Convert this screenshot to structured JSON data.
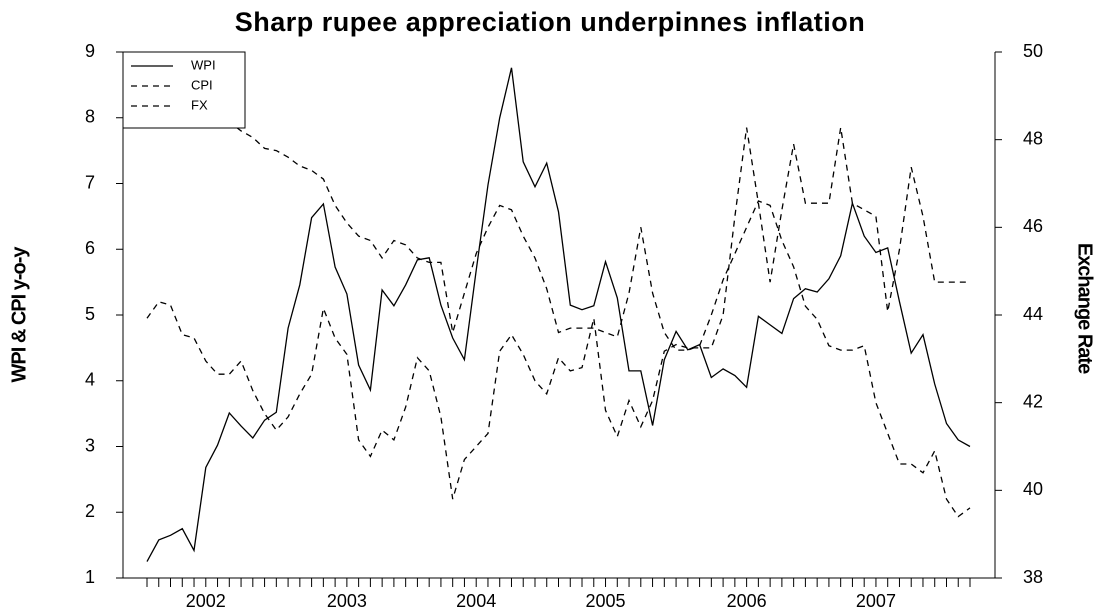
{
  "chart_data": {
    "type": "line",
    "title": "Sharp rupee appreciation underpinnes inflation",
    "y_label": "WPI & CPI y-o-y",
    "y2_label": "Exchange Rate",
    "categories": [
      null,
      null,
      null,
      null,
      null,
      "2002",
      null,
      null,
      null,
      null,
      null,
      null,
      null,
      null,
      null,
      null,
      null,
      "2003",
      null,
      null,
      null,
      null,
      null,
      null,
      null,
      null,
      null,
      null,
      "2004",
      null,
      null,
      null,
      null,
      null,
      null,
      null,
      null,
      null,
      null,
      "2005",
      null,
      null,
      null,
      null,
      null,
      null,
      null,
      null,
      null,
      null,
      null,
      "2006",
      null,
      null,
      null,
      null,
      null,
      null,
      null,
      null,
      null,
      null,
      "2007",
      null,
      null,
      null,
      null,
      null,
      null,
      null,
      null
    ],
    "series": [
      {
        "name": "WPI",
        "color": "#000000",
        "style": "solid",
        "values": [
          1.25,
          1.58,
          1.65,
          1.75,
          1.42,
          2.68,
          3.02,
          3.51,
          3.31,
          3.13,
          3.4,
          3.52,
          4.8,
          5.46,
          6.48,
          6.69,
          5.73,
          5.32,
          4.24,
          3.86,
          5.38,
          5.14,
          5.46,
          5.84,
          5.87,
          5.15,
          4.65,
          4.32,
          5.68,
          6.98,
          8.0,
          8.76,
          7.33,
          6.95,
          7.31,
          6.57,
          5.15,
          5.08,
          5.14,
          5.81,
          5.26,
          4.15,
          4.15,
          3.32,
          4.32,
          4.75,
          4.47,
          4.55,
          4.05,
          4.18,
          4.08,
          3.9,
          4.98,
          4.85,
          4.72,
          5.25,
          5.4,
          5.35,
          5.55,
          5.9,
          6.7,
          6.2,
          5.95,
          6.02,
          5.2,
          4.42,
          4.7,
          3.95,
          3.35,
          3.1,
          3.0
        ]
      },
      {
        "name": "CPI",
        "color": "#000000",
        "style": "dashed",
        "values": [
          4.95,
          5.2,
          5.15,
          4.7,
          4.65,
          4.3,
          4.1,
          4.1,
          4.3,
          3.85,
          3.5,
          3.25,
          3.45,
          3.8,
          4.1,
          5.1,
          4.65,
          4.4,
          3.1,
          2.85,
          3.25,
          3.1,
          3.6,
          4.35,
          4.15,
          3.45,
          2.2,
          2.8,
          3.0,
          3.2,
          4.45,
          4.7,
          4.4,
          4.0,
          3.8,
          4.35,
          4.15,
          4.2,
          4.95,
          3.55,
          3.15,
          3.7,
          3.3,
          3.7,
          4.45,
          4.55,
          4.5,
          4.5,
          4.5,
          5.0,
          6.5,
          7.85,
          6.7,
          5.5,
          6.6,
          7.6,
          6.7,
          6.7,
          6.7,
          7.85,
          6.7,
          6.6,
          6.5,
          5.05,
          6.0,
          7.25,
          6.5,
          5.5,
          5.5,
          5.5,
          5.5
        ]
      },
      {
        "name": "FX",
        "color": "#000000",
        "style": "dashed",
        "axis": "y2",
        "values": [
          49.1,
          49.1,
          49.0,
          48.95,
          48.8,
          48.7,
          48.6,
          48.4,
          48.2,
          48.05,
          47.8,
          47.75,
          47.6,
          47.4,
          47.3,
          47.1,
          46.5,
          46.1,
          45.8,
          45.7,
          45.3,
          45.7,
          45.6,
          45.3,
          45.2,
          45.2,
          43.6,
          44.5,
          45.4,
          46.0,
          46.5,
          46.4,
          45.8,
          45.3,
          44.6,
          43.6,
          43.7,
          43.7,
          43.7,
          43.6,
          43.5,
          44.5,
          46.0,
          44.5,
          43.6,
          43.2,
          43.2,
          43.3,
          44.0,
          44.8,
          45.4,
          46.0,
          46.6,
          46.5,
          45.7,
          45.1,
          44.2,
          43.9,
          43.3,
          43.2,
          43.2,
          43.3,
          42.0,
          41.3,
          40.6,
          40.6,
          40.4,
          40.9,
          39.8,
          39.4,
          39.6
        ]
      }
    ],
    "ylim": [
      1,
      9
    ],
    "yticks": [
      1,
      2,
      3,
      4,
      5,
      6,
      7,
      8,
      9
    ],
    "y2lim": [
      38,
      50
    ],
    "y2ticks": [
      38,
      40,
      42,
      44,
      46,
      48,
      50
    ],
    "legend": "top-left",
    "grid": false
  }
}
